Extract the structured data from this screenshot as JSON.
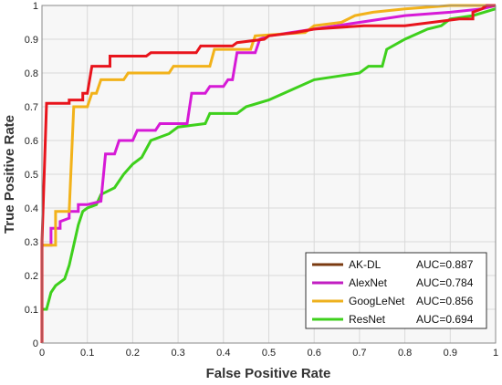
{
  "chart_data": {
    "type": "line",
    "title": "",
    "xlabel": "False Positive Rate",
    "ylabel": "True Positive Rate",
    "xlim": [
      0,
      1
    ],
    "ylim": [
      0,
      1
    ],
    "grid": true,
    "legend_position": "bottom-right",
    "x_ticks": [
      "0",
      "0.1",
      "0.2",
      "0.3",
      "0.4",
      "0.5",
      "0.6",
      "0.7",
      "0.8",
      "0.9",
      "1"
    ],
    "y_ticks": [
      "0",
      "0.1",
      "0.2",
      "0.3",
      "0.4",
      "0.5",
      "0.6",
      "0.7",
      "0.8",
      "0.9",
      "1"
    ],
    "series": [
      {
        "name": "AK-DL",
        "auc_label": "AUC=0.887",
        "color": "#e8141c",
        "legend_color": "#7a3a10",
        "points": [
          [
            0,
            0
          ],
          [
            0,
            0.3
          ],
          [
            0.01,
            0.71
          ],
          [
            0.06,
            0.71
          ],
          [
            0.06,
            0.72
          ],
          [
            0.09,
            0.72
          ],
          [
            0.09,
            0.74
          ],
          [
            0.1,
            0.74
          ],
          [
            0.11,
            0.82
          ],
          [
            0.15,
            0.82
          ],
          [
            0.15,
            0.85
          ],
          [
            0.23,
            0.85
          ],
          [
            0.24,
            0.86
          ],
          [
            0.34,
            0.86
          ],
          [
            0.35,
            0.88
          ],
          [
            0.42,
            0.88
          ],
          [
            0.43,
            0.89
          ],
          [
            0.49,
            0.9
          ],
          [
            0.5,
            0.91
          ],
          [
            0.56,
            0.92
          ],
          [
            0.6,
            0.93
          ],
          [
            0.71,
            0.94
          ],
          [
            0.8,
            0.94
          ],
          [
            0.86,
            0.95
          ],
          [
            0.92,
            0.96
          ],
          [
            0.95,
            0.96
          ],
          [
            0.95,
            0.98
          ],
          [
            0.97,
            0.99
          ],
          [
            0.98,
            1
          ],
          [
            1,
            1
          ]
        ]
      },
      {
        "name": "AlexNet",
        "auc_label": "AUC=0.784",
        "color": "#d61ad6",
        "legend_color": "#c21ec2",
        "points": [
          [
            0,
            0
          ],
          [
            0,
            0.29
          ],
          [
            0.02,
            0.29
          ],
          [
            0.02,
            0.34
          ],
          [
            0.04,
            0.34
          ],
          [
            0.04,
            0.36
          ],
          [
            0.06,
            0.37
          ],
          [
            0.06,
            0.39
          ],
          [
            0.08,
            0.39
          ],
          [
            0.08,
            0.41
          ],
          [
            0.1,
            0.41
          ],
          [
            0.13,
            0.42
          ],
          [
            0.14,
            0.56
          ],
          [
            0.16,
            0.56
          ],
          [
            0.17,
            0.6
          ],
          [
            0.2,
            0.6
          ],
          [
            0.21,
            0.63
          ],
          [
            0.25,
            0.63
          ],
          [
            0.26,
            0.65
          ],
          [
            0.32,
            0.65
          ],
          [
            0.33,
            0.74
          ],
          [
            0.36,
            0.74
          ],
          [
            0.37,
            0.76
          ],
          [
            0.4,
            0.76
          ],
          [
            0.41,
            0.78
          ],
          [
            0.42,
            0.78
          ],
          [
            0.43,
            0.86
          ],
          [
            0.47,
            0.86
          ],
          [
            0.48,
            0.9
          ],
          [
            0.5,
            0.91
          ],
          [
            0.6,
            0.93
          ],
          [
            0.7,
            0.95
          ],
          [
            0.8,
            0.97
          ],
          [
            0.9,
            0.98
          ],
          [
            0.97,
            0.99
          ],
          [
            1,
            1
          ]
        ]
      },
      {
        "name": "GoogLeNet",
        "auc_label": "AUC=0.856",
        "color": "#f2b21a",
        "legend_color": "#eeb11e",
        "points": [
          [
            0,
            0
          ],
          [
            0,
            0.29
          ],
          [
            0.03,
            0.29
          ],
          [
            0.03,
            0.39
          ],
          [
            0.06,
            0.39
          ],
          [
            0.07,
            0.7
          ],
          [
            0.1,
            0.7
          ],
          [
            0.11,
            0.74
          ],
          [
            0.12,
            0.74
          ],
          [
            0.13,
            0.78
          ],
          [
            0.18,
            0.78
          ],
          [
            0.19,
            0.8
          ],
          [
            0.28,
            0.8
          ],
          [
            0.29,
            0.82
          ],
          [
            0.37,
            0.82
          ],
          [
            0.38,
            0.87
          ],
          [
            0.46,
            0.87
          ],
          [
            0.47,
            0.91
          ],
          [
            0.58,
            0.92
          ],
          [
            0.6,
            0.94
          ],
          [
            0.66,
            0.95
          ],
          [
            0.69,
            0.97
          ],
          [
            0.73,
            0.98
          ],
          [
            0.8,
            0.99
          ],
          [
            0.9,
            1
          ],
          [
            1,
            1
          ]
        ]
      },
      {
        "name": "ResNet",
        "auc_label": "AUC=0.694",
        "color": "#3ed01c",
        "legend_color": "#3ed01c",
        "points": [
          [
            0,
            0
          ],
          [
            0,
            0.1
          ],
          [
            0.01,
            0.1
          ],
          [
            0.02,
            0.15
          ],
          [
            0.03,
            0.17
          ],
          [
            0.05,
            0.19
          ],
          [
            0.06,
            0.23
          ],
          [
            0.07,
            0.29
          ],
          [
            0.08,
            0.35
          ],
          [
            0.09,
            0.39
          ],
          [
            0.1,
            0.4
          ],
          [
            0.12,
            0.41
          ],
          [
            0.13,
            0.44
          ],
          [
            0.16,
            0.46
          ],
          [
            0.18,
            0.5
          ],
          [
            0.2,
            0.53
          ],
          [
            0.22,
            0.55
          ],
          [
            0.24,
            0.6
          ],
          [
            0.28,
            0.62
          ],
          [
            0.3,
            0.64
          ],
          [
            0.36,
            0.65
          ],
          [
            0.37,
            0.68
          ],
          [
            0.43,
            0.68
          ],
          [
            0.45,
            0.7
          ],
          [
            0.5,
            0.72
          ],
          [
            0.55,
            0.75
          ],
          [
            0.6,
            0.78
          ],
          [
            0.65,
            0.79
          ],
          [
            0.7,
            0.8
          ],
          [
            0.72,
            0.82
          ],
          [
            0.75,
            0.82
          ],
          [
            0.76,
            0.87
          ],
          [
            0.8,
            0.9
          ],
          [
            0.85,
            0.93
          ],
          [
            0.88,
            0.94
          ],
          [
            0.9,
            0.96
          ],
          [
            0.95,
            0.97
          ],
          [
            1,
            0.99
          ]
        ]
      }
    ]
  }
}
